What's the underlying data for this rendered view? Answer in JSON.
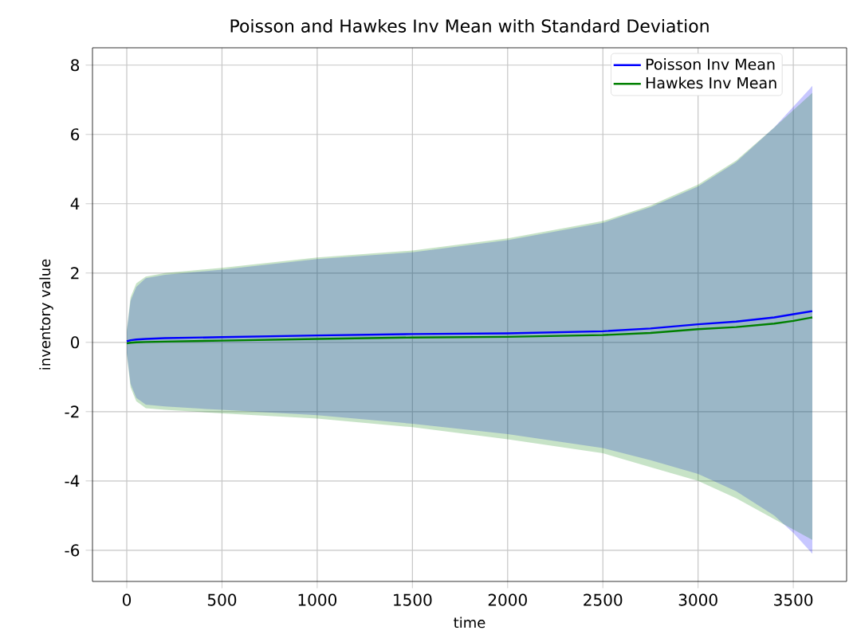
{
  "chart_data": {
    "type": "line",
    "title": "Poisson and Hawkes Inv Mean with Standard Deviation",
    "xlabel": "time",
    "ylabel": "inventory value",
    "xlim": [
      -180,
      3780
    ],
    "ylim": [
      -6.9,
      8.5
    ],
    "xticks": [
      0,
      500,
      1000,
      1500,
      2000,
      2500,
      3000,
      3500
    ],
    "yticks": [
      -6,
      -4,
      -2,
      0,
      2,
      4,
      6,
      8
    ],
    "grid": true,
    "legend": "top right",
    "series": [
      {
        "name": "Poisson Inv Mean",
        "color": "#0000ff",
        "x": [
          0,
          20,
          50,
          100,
          200,
          500,
          1000,
          1500,
          2000,
          2500,
          2750,
          3000,
          3200,
          3400,
          3500,
          3600
        ],
        "values": [
          0.03,
          0.06,
          0.08,
          0.1,
          0.12,
          0.15,
          0.2,
          0.24,
          0.26,
          0.32,
          0.4,
          0.52,
          0.6,
          0.72,
          0.81,
          0.9
        ],
        "lower": [
          -0.3,
          -1.2,
          -1.6,
          -1.8,
          -1.85,
          -1.95,
          -2.1,
          -2.35,
          -2.65,
          -3.05,
          -3.4,
          -3.8,
          -4.3,
          -5.0,
          -5.5,
          -6.1
        ],
        "upper": [
          0.3,
          1.2,
          1.6,
          1.85,
          1.95,
          2.1,
          2.4,
          2.6,
          2.95,
          3.45,
          3.9,
          4.5,
          5.2,
          6.2,
          6.8,
          7.4
        ]
      },
      {
        "name": "Hawkes Inv Mean",
        "color": "#008000",
        "x": [
          0,
          20,
          50,
          100,
          200,
          500,
          1000,
          1500,
          2000,
          2500,
          2750,
          3000,
          3200,
          3400,
          3500,
          3600
        ],
        "values": [
          -0.03,
          -0.01,
          0.0,
          0.01,
          0.02,
          0.05,
          0.1,
          0.14,
          0.16,
          0.21,
          0.27,
          0.38,
          0.44,
          0.54,
          0.62,
          0.72
        ],
        "lower": [
          -0.35,
          -1.3,
          -1.7,
          -1.9,
          -1.95,
          -2.05,
          -2.2,
          -2.45,
          -2.8,
          -3.2,
          -3.6,
          -4.0,
          -4.5,
          -5.1,
          -5.4,
          -5.7
        ],
        "upper": [
          0.35,
          1.3,
          1.7,
          1.9,
          2.0,
          2.15,
          2.45,
          2.65,
          3.0,
          3.5,
          3.95,
          4.55,
          5.25,
          6.2,
          6.7,
          7.2
        ]
      }
    ]
  }
}
